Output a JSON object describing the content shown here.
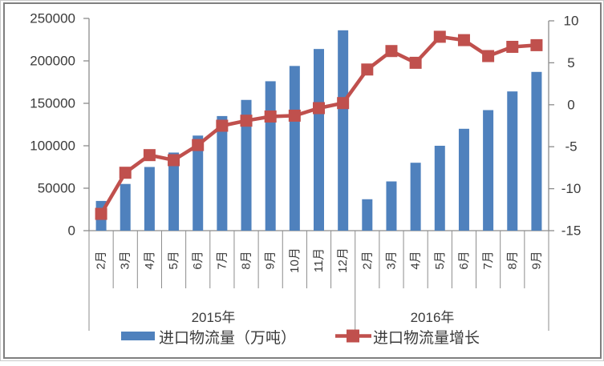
{
  "chart_data": {
    "type": "bar",
    "title": "",
    "categories": [
      "2月",
      "3月",
      "4月",
      "5月",
      "6月",
      "7月",
      "8月",
      "9月",
      "10月",
      "11月",
      "12月",
      "2月",
      "3月",
      "4月",
      "5月",
      "6月",
      "7月",
      "8月",
      "9月"
    ],
    "category_groups": [
      {
        "label": "2015年",
        "count": 11
      },
      {
        "label": "2016年",
        "count": 8
      }
    ],
    "series": [
      {
        "name": "进口物流量（万吨）",
        "type": "bar",
        "axis": "left",
        "color": "#4F81BD",
        "values": [
          35000,
          55000,
          75000,
          92000,
          112000,
          135000,
          154000,
          176000,
          194000,
          214000,
          236000,
          37000,
          58000,
          80000,
          100000,
          120000,
          142000,
          164000,
          187000
        ]
      },
      {
        "name": "进口物流量增长",
        "type": "line",
        "axis": "right",
        "color": "#C0504D",
        "marker": "square",
        "values": [
          -13,
          -8.1,
          -6,
          -6.6,
          -4.8,
          -2.5,
          -1.9,
          -1.4,
          -1.3,
          -0.4,
          0.2,
          4.2,
          6.4,
          5,
          8.1,
          7.7,
          5.8,
          6.9,
          7.1
        ]
      }
    ],
    "left_axis": {
      "min": 0,
      "max": 250000,
      "step": 50000,
      "tick_labels": [
        "0",
        "50000",
        "100000",
        "150000",
        "200000",
        "250000"
      ]
    },
    "right_axis": {
      "min": -15,
      "max": 10,
      "step": 5,
      "tick_labels": [
        "-15",
        "-10",
        "-5",
        "0",
        "5",
        "10"
      ]
    },
    "grid": false,
    "legend_position": "bottom",
    "axis_line_color": "#8C8C8C"
  }
}
